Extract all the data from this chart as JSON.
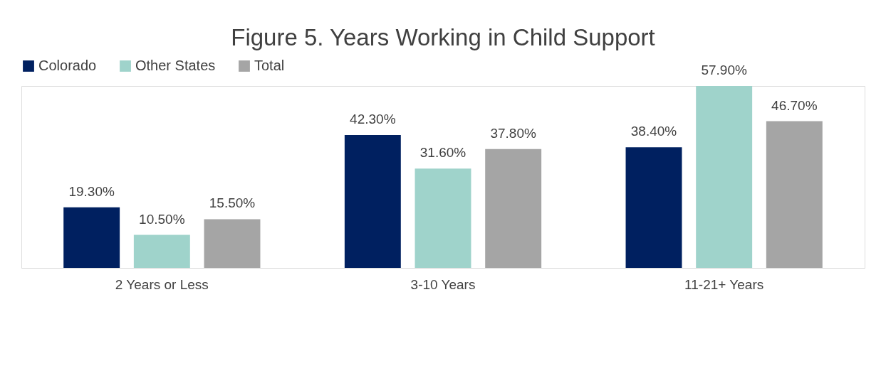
{
  "chart_data": {
    "type": "bar",
    "title": "Figure 5. Years Working in Child Support",
    "categories": [
      "2 Years or Less",
      "3-10 Years",
      "11-21+ Years"
    ],
    "legend": "top",
    "series": [
      {
        "name": "Colorado",
        "color": "#002060",
        "values": [
          19.3,
          42.3,
          38.4
        ],
        "value_labels": [
          "19.30%",
          "42.30%",
          "38.40%"
        ]
      },
      {
        "name": "Other States",
        "color": "#9fd3cb",
        "values": [
          10.5,
          31.6,
          57.9
        ],
        "value_labels": [
          "10.50%",
          "31.60%",
          "57.90%"
        ]
      },
      {
        "name": "Total",
        "color": "#a5a5a5",
        "values": [
          15.5,
          37.8,
          46.7
        ],
        "value_labels": [
          "15.50%",
          "37.80%",
          "46.70%"
        ]
      }
    ]
  }
}
